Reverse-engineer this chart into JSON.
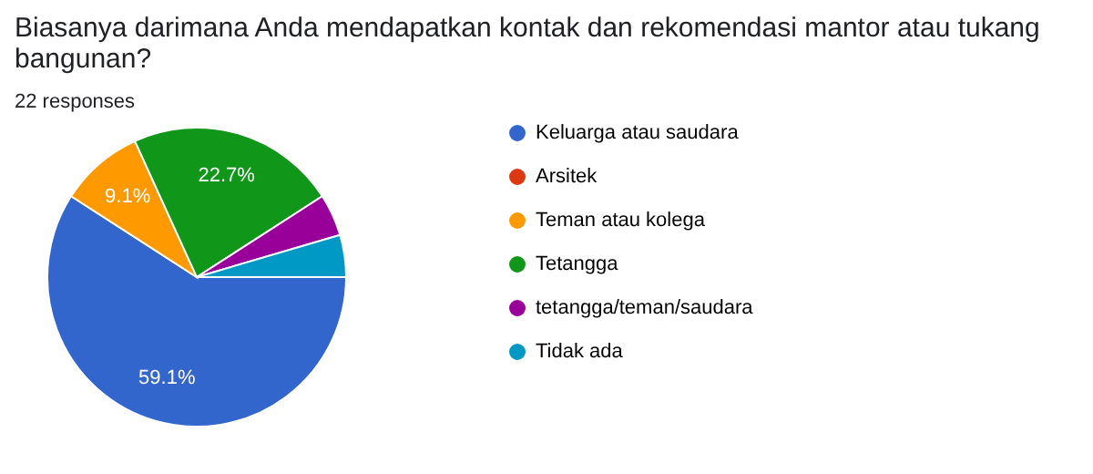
{
  "chart_data": {
    "type": "pie",
    "title": "Biasanya darimana Anda mendapatkan kontak dan rekomendasi mantor atau tukang bangunan?",
    "subtitle": "22 responses",
    "categories": [
      "Keluarga atau saudara",
      "Arsitek",
      "Teman atau kolega",
      "Tetangga",
      "tetangga/teman/saudara",
      "Tidak ada"
    ],
    "values": [
      59.1,
      0,
      9.1,
      22.7,
      4.55,
      4.55
    ],
    "colors": [
      "#3366cc",
      "#dc3912",
      "#ff9900",
      "#109618",
      "#990099",
      "#0099c6"
    ],
    "value_labels": [
      "59.1%",
      null,
      "9.1%",
      "22.7%",
      null,
      null
    ],
    "legend": "right"
  }
}
